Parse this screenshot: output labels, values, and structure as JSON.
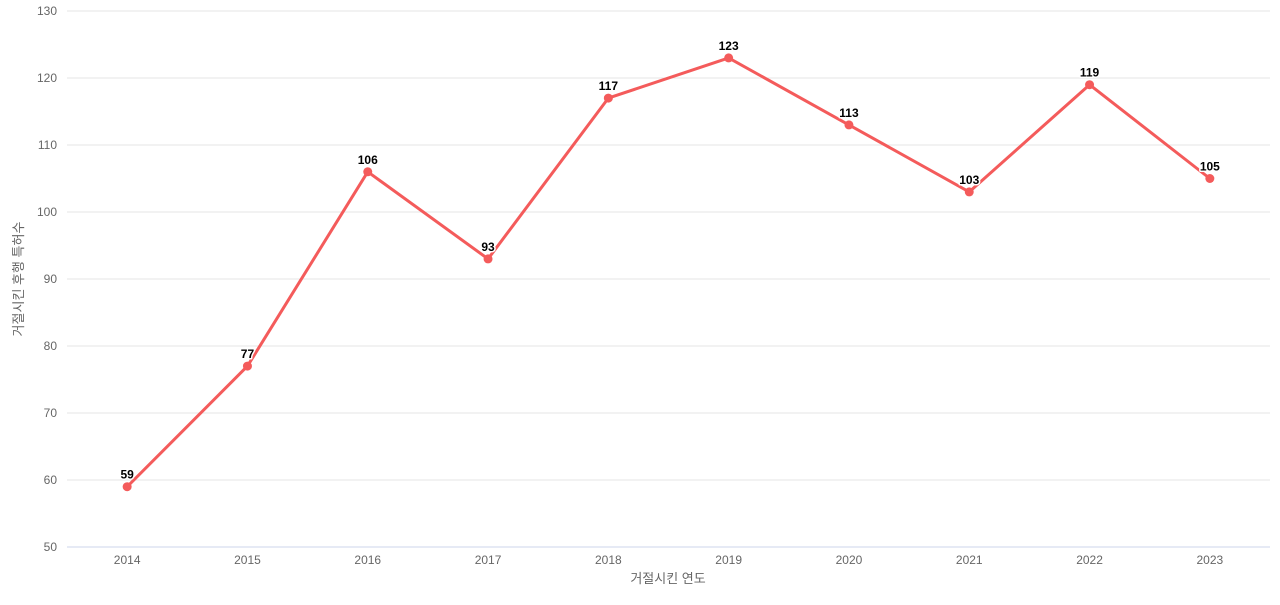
{
  "chart_data": {
    "type": "line",
    "title": "",
    "xlabel": "거절시킨 연도",
    "ylabel": "거절시킨 후행 특허수",
    "categories": [
      "2014",
      "2015",
      "2016",
      "2017",
      "2018",
      "2019",
      "2020",
      "2021",
      "2022",
      "2023"
    ],
    "series": [
      {
        "name": "거절시킨 후행 특허수",
        "values": [
          59,
          77,
          106,
          93,
          117,
          123,
          113,
          103,
          119,
          105
        ]
      }
    ],
    "data_labels_shown": true,
    "ylim": [
      50,
      130
    ],
    "ytick_step": 10,
    "ytick_labels": [
      "50",
      "60",
      "70",
      "80",
      "90",
      "100",
      "110",
      "120",
      "130"
    ],
    "grid": "horizontal",
    "legend": "none",
    "colors": {
      "line": "#f45b5b",
      "marker": "#f45b5b",
      "grid_line": "#e6e6e6",
      "axis_line": "#ccd6eb",
      "tick_text": "#666666",
      "axis_title_text": "#666666",
      "data_label_text": "#000000",
      "background": "#ffffff"
    }
  }
}
